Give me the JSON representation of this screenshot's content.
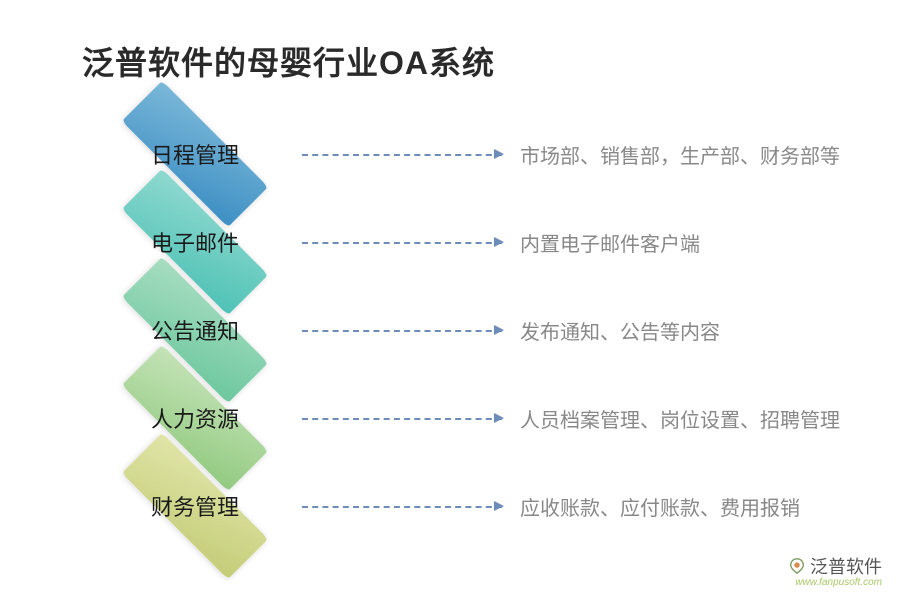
{
  "title": "泛普软件的母婴行业OA系统",
  "title_fontsize": 32,
  "title_color": "#2a2a2a",
  "background_color": "#ffffff",
  "connector_color": "#6b8db8",
  "description_color": "#888888",
  "label_color": "#1a1a1a",
  "label_fontsize": 22,
  "description_fontsize": 20,
  "rows": [
    {
      "label": "日程管理",
      "description": "市场部、销售部，生产部、财务部等",
      "gradient_from": "#7bb8d9",
      "gradient_to": "#3d8fc4"
    },
    {
      "label": "电子邮件",
      "description": "内置电子邮件客户端",
      "gradient_from": "#8fd9d0",
      "gradient_to": "#4fc2b5"
    },
    {
      "label": "公告通知",
      "description": "发布通知、公告等内容",
      "gradient_from": "#a8ddc2",
      "gradient_to": "#6cc89e"
    },
    {
      "label": "人力资源",
      "description": "人员档案管理、岗位设置、招聘管理",
      "gradient_from": "#c5e3b8",
      "gradient_to": "#92ca80"
    },
    {
      "label": "财务管理",
      "description": "应收账款、应付账款、费用报销",
      "gradient_from": "#e0e5a8",
      "gradient_to": "#c4cd78"
    }
  ],
  "watermark": {
    "brand": "泛普软件",
    "url": "www.fanpusoft.com",
    "icon_color_outer": "#7a9b5c",
    "icon_color_inner": "#d98b4a"
  }
}
